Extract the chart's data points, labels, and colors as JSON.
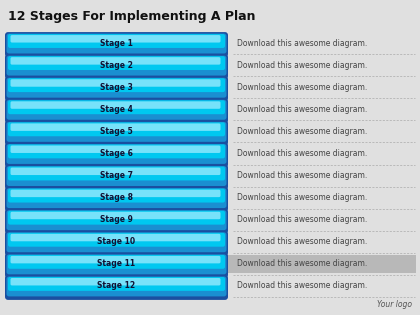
{
  "title": "12 Stages For Implementing A Plan",
  "title_fontsize": 9,
  "stages": [
    "Stage 1",
    "Stage 2",
    "Stage 3",
    "Stage 4",
    "Stage 5",
    "Stage 6",
    "Stage 7",
    "Stage 8",
    "Stage 9",
    "Stage 10",
    "Stage 11",
    "Stage 12"
  ],
  "description": "Download this awesome diagram.",
  "bg_color": "#e0e0e0",
  "bar_outer_color": "#1a4fa0",
  "bar_mid_color": "#1a8fd1",
  "bar_cyan_color": "#00c8f0",
  "bar_highlight_color": "#aaeeff",
  "stage_text_color": "#111133",
  "desc_color": "#444444",
  "logo_text": "Your logo",
  "highlight_row": 10,
  "highlight_bg": "#b8b8b8",
  "separator_color": "#aaaaaa",
  "fig_width": 4.2,
  "fig_height": 3.15,
  "dpi": 100
}
